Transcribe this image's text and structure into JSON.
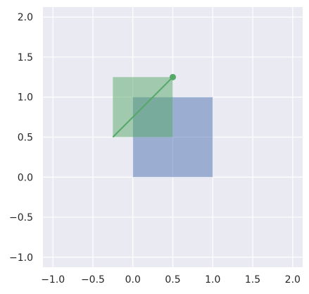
{
  "chart_data": {
    "type": "area",
    "title": "",
    "xlabel": "",
    "ylabel": "",
    "xlim": [
      -1.125,
      2.125
    ],
    "ylim": [
      -1.125,
      2.125
    ],
    "grid": true,
    "legend": "none",
    "x_ticks": [
      -1.0,
      -0.5,
      0.0,
      0.5,
      1.0,
      1.5,
      2.0
    ],
    "y_ticks": [
      -1.0,
      -0.5,
      0.0,
      0.5,
      1.0,
      1.5,
      2.0
    ],
    "x_tick_labels": [
      "−1.0",
      "−0.5",
      "0.0",
      "0.5",
      "1.0",
      "1.5",
      "2.0"
    ],
    "y_tick_labels": [
      "−1.0",
      "−0.5",
      "0.0",
      "0.5",
      "1.0",
      "1.5",
      "2.0"
    ],
    "shapes": [
      {
        "kind": "rect",
        "x0": 0.0,
        "y0": 0.0,
        "x1": 1.0,
        "y1": 1.0,
        "color": "#4c72b0",
        "opacity": 0.5
      },
      {
        "kind": "rect",
        "x0": -0.25,
        "y0": 0.5,
        "x1": 0.5,
        "y1": 1.25,
        "color": "#55a868",
        "opacity": 0.5
      }
    ],
    "series": [
      {
        "kind": "line",
        "x": [
          -0.25,
          0.5
        ],
        "y": [
          0.5,
          1.25
        ],
        "color": "#55a868"
      }
    ],
    "points": [
      {
        "x": 0.5,
        "y": 1.25,
        "color": "#55a868"
      }
    ]
  },
  "style": {
    "plot_background": "#eaeaf2",
    "grid_color": "#ffffff"
  }
}
